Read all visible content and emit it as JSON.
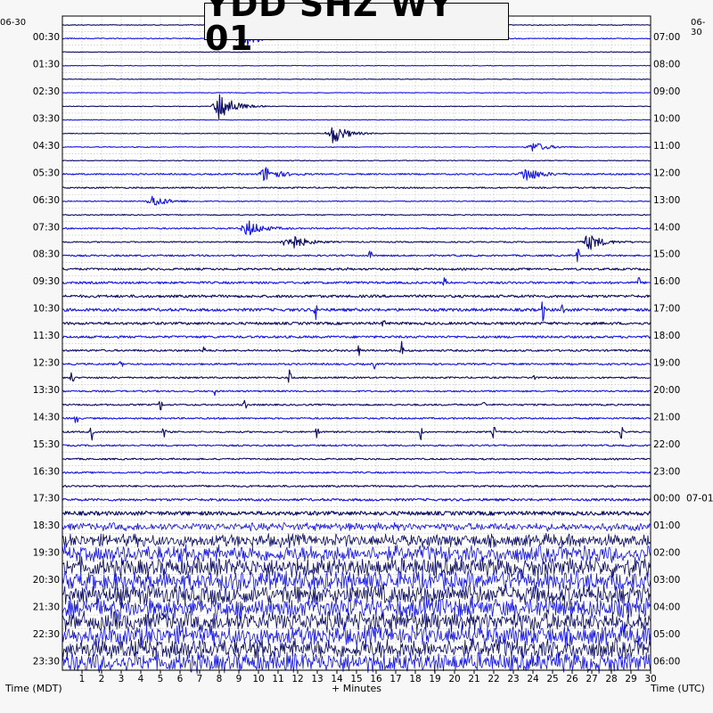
{
  "title": "YDD SHZ WY 01",
  "left_date": "06-30",
  "right_date": "06-30",
  "right_date2": "07-01",
  "left_axis_title": "Time (MDT)",
  "right_axis_title": "Time (UTC)",
  "bottom_axis_title": "+ Minutes",
  "colors": {
    "background": "#f7f7f7",
    "plot_bg": "#ffffff",
    "grid": "#b9b9b9",
    "trace_dark": "#0b0b62",
    "trace_blue": "#1414e6"
  },
  "chart_data": {
    "type": "line",
    "title": "YDD SHZ WY 01",
    "xlabel": "+ Minutes",
    "ylabel_left": "Time (MDT)",
    "ylabel_right": "Time (UTC)",
    "xlim": [
      0,
      30
    ],
    "x_ticks": [
      1,
      2,
      3,
      4,
      5,
      6,
      7,
      8,
      9,
      10,
      11,
      12,
      13,
      14,
      15,
      16,
      17,
      18,
      19,
      20,
      21,
      22,
      23,
      24,
      25,
      26,
      27,
      28,
      29,
      30
    ],
    "rows_per_hour": 2,
    "row_count": 48,
    "left_time_labels": [
      "00:30",
      "01:30",
      "02:30",
      "03:30",
      "04:30",
      "05:30",
      "06:30",
      "07:30",
      "08:30",
      "09:30",
      "10:30",
      "11:30",
      "12:30",
      "13:30",
      "14:30",
      "15:30",
      "16:30",
      "17:30",
      "18:30",
      "19:30",
      "20:30",
      "21:30",
      "22:30",
      "23:30"
    ],
    "right_time_labels": [
      "07:00",
      "08:00",
      "09:00",
      "10:00",
      "11:00",
      "12:00",
      "13:00",
      "14:00",
      "15:00",
      "16:00",
      "17:00",
      "18:00",
      "19:00",
      "20:00",
      "21:00",
      "22:00",
      "23:00",
      "00:00",
      "01:00",
      "02:00",
      "03:00",
      "04:00",
      "05:00",
      "06:00"
    ],
    "series_colors": [
      "#0b0b62",
      "#1414e6"
    ],
    "grid": true,
    "activity_profile": [
      0.5,
      0.6,
      0.4,
      0.4,
      0.4,
      0.4,
      0.4,
      0.4,
      0.4,
      0.5,
      0.5,
      0.9,
      0.9,
      0.6,
      0.6,
      0.9,
      0.8,
      1.0,
      1.3,
      1.4,
      1.6,
      1.8,
      1.6,
      1.4,
      1.2,
      1.1,
      1.0,
      1.0,
      1.0,
      1.0,
      1.0,
      1.0,
      1.0,
      1.0,
      1.1,
      1.5,
      2.5,
      4.0,
      6.5,
      8.5,
      9.5,
      10,
      10,
      10,
      10,
      10,
      10,
      10
    ],
    "events": [
      {
        "row": 1,
        "minute": 9.2,
        "amp": 14
      },
      {
        "row": 6,
        "minute": 8.0,
        "amp": 18
      },
      {
        "row": 8,
        "minute": 13.8,
        "amp": 12
      },
      {
        "row": 9,
        "minute": 24.0,
        "amp": 6
      },
      {
        "row": 11,
        "minute": 10.3,
        "amp": 9
      },
      {
        "row": 11,
        "minute": 23.6,
        "amp": 9
      },
      {
        "row": 13,
        "minute": 4.6,
        "amp": 7
      },
      {
        "row": 15,
        "minute": 9.4,
        "amp": 10
      },
      {
        "row": 16,
        "minute": 11.5,
        "amp": 12
      },
      {
        "row": 16,
        "minute": 26.8,
        "amp": 10
      }
    ],
    "spikes": [
      {
        "row": 17,
        "minute": 15.7,
        "amp": 6
      },
      {
        "row": 17,
        "minute": 26.3,
        "amp": 10
      },
      {
        "row": 18,
        "minute": 14.6,
        "amp": 6
      },
      {
        "row": 19,
        "minute": 19.5,
        "amp": 6
      },
      {
        "row": 19,
        "minute": 29.4,
        "amp": 6
      },
      {
        "row": 21,
        "minute": 12.9,
        "amp": 12
      },
      {
        "row": 21,
        "minute": 24.5,
        "amp": 14
      },
      {
        "row": 21,
        "minute": 25.5,
        "amp": 7
      },
      {
        "row": 22,
        "minute": 16.4,
        "amp": 6
      },
      {
        "row": 24,
        "minute": 7.2,
        "amp": 6
      },
      {
        "row": 24,
        "minute": 15.1,
        "amp": 8
      },
      {
        "row": 24,
        "minute": 17.3,
        "amp": 10
      },
      {
        "row": 25,
        "minute": 3.0,
        "amp": 4
      },
      {
        "row": 25,
        "minute": 15.9,
        "amp": 6
      },
      {
        "row": 26,
        "minute": 0.5,
        "amp": 10
      },
      {
        "row": 26,
        "minute": 11.6,
        "amp": 10
      },
      {
        "row": 26,
        "minute": 24.0,
        "amp": 6
      },
      {
        "row": 27,
        "minute": 7.8,
        "amp": 6
      },
      {
        "row": 28,
        "minute": 5.0,
        "amp": 8
      },
      {
        "row": 28,
        "minute": 9.3,
        "amp": 8
      },
      {
        "row": 28,
        "minute": 21.5,
        "amp": 6
      },
      {
        "row": 29,
        "minute": 0.7,
        "amp": 10
      },
      {
        "row": 30,
        "minute": 1.5,
        "amp": 12
      },
      {
        "row": 30,
        "minute": 5.2,
        "amp": 10
      },
      {
        "row": 30,
        "minute": 13.0,
        "amp": 8
      },
      {
        "row": 30,
        "minute": 18.3,
        "amp": 10
      },
      {
        "row": 30,
        "minute": 22.0,
        "amp": 8
      },
      {
        "row": 30,
        "minute": 28.5,
        "amp": 8
      }
    ]
  }
}
